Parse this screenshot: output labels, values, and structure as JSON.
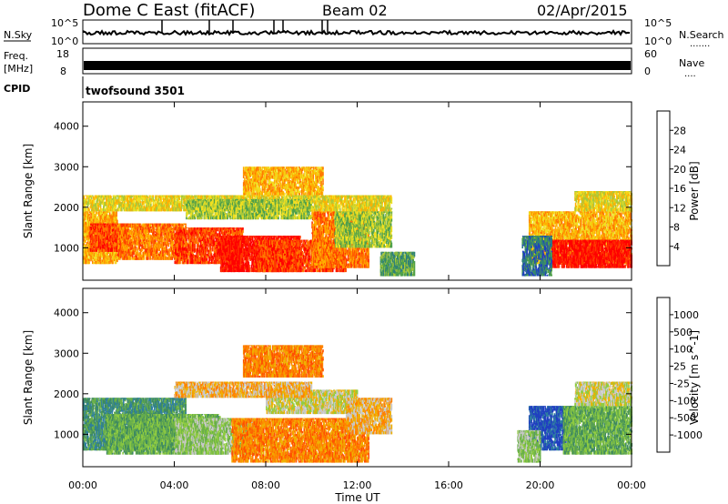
{
  "header": {
    "station": "Dome C East (fitACF)",
    "beam": "Beam 02",
    "date": "02/Apr/2015"
  },
  "strips": {
    "nsky_label": "N.Sky",
    "nsky_ticks": [
      "10^5",
      "10^0"
    ],
    "nsearch_label": "N.Search",
    "nsearch_ticks": [
      "10^5",
      "10^0"
    ],
    "freq_label_1": "Freq.",
    "freq_label_2": "[MHz]",
    "freq_ticks": [
      "18",
      "8"
    ],
    "nave_label": "Nave",
    "nave_ticks": [
      "60",
      "0"
    ],
    "cpid_label": "CPID",
    "cpid_value": "twofsound 3501"
  },
  "chart_data": [
    {
      "type": "heatmap",
      "name": "power",
      "ylabel": "Slant Range [km]",
      "ylim": [
        200,
        4600
      ],
      "yticks": [
        "4000",
        "3000",
        "2000",
        "1000"
      ],
      "xlim": [
        0,
        24
      ],
      "colorbar": {
        "label": "Power [dB]",
        "ticks": [
          "28",
          "24",
          "20",
          "16",
          "12",
          "8",
          "4"
        ],
        "colors": [
          "#0000ff",
          "#1f3fc0",
          "#2e7f7a",
          "#4fa04a",
          "#a8c83a",
          "#f0e020",
          "#ffb000",
          "#ff7a00",
          "#ff3a00",
          "#ff0000"
        ]
      },
      "regions": [
        {
          "t": [
            0.0,
            1.5
          ],
          "r": [
            600,
            1900
          ],
          "c": 6
        },
        {
          "t": [
            0.3,
            2.0
          ],
          "r": [
            900,
            1600
          ],
          "c": 8
        },
        {
          "t": [
            1.5,
            4.5
          ],
          "r": [
            700,
            1600
          ],
          "c": 7
        },
        {
          "t": [
            4.0,
            7.0
          ],
          "r": [
            600,
            1500
          ],
          "c": 8
        },
        {
          "t": [
            6.0,
            9.5
          ],
          "r": [
            400,
            1300
          ],
          "c": 9
        },
        {
          "t": [
            7.5,
            11.5
          ],
          "r": [
            400,
            1200
          ],
          "c": 8
        },
        {
          "t": [
            10.0,
            12.5
          ],
          "r": [
            500,
            1900
          ],
          "c": 7
        },
        {
          "t": [
            11.0,
            13.5
          ],
          "r": [
            1000,
            1900
          ],
          "c": 4
        },
        {
          "t": [
            0.0,
            13.5
          ],
          "r": [
            1900,
            2300
          ],
          "c": 5
        },
        {
          "t": [
            7.0,
            10.5
          ],
          "r": [
            2300,
            3000
          ],
          "c": 6
        },
        {
          "t": [
            4.5,
            10.0
          ],
          "r": [
            1700,
            2200
          ],
          "c": 4
        },
        {
          "t": [
            13.0,
            14.5
          ],
          "r": [
            300,
            900
          ],
          "c": 3
        },
        {
          "t": [
            19.5,
            24.0
          ],
          "r": [
            600,
            1900
          ],
          "c": 6
        },
        {
          "t": [
            20.5,
            24.0
          ],
          "r": [
            500,
            1200
          ],
          "c": 9
        },
        {
          "t": [
            21.5,
            24.0
          ],
          "r": [
            1900,
            2400
          ],
          "c": 5
        },
        {
          "t": [
            19.2,
            20.5
          ],
          "r": [
            300,
            1300
          ],
          "c": 2
        }
      ]
    },
    {
      "type": "heatmap",
      "name": "velocity",
      "ylabel": "Slant Range [km]",
      "xlabel": "Time UT",
      "ylim": [
        200,
        4600
      ],
      "yticks": [
        "4000",
        "3000",
        "2000",
        "1000"
      ],
      "xlim": [
        0,
        24
      ],
      "xticks": [
        "00:00",
        "04:00",
        "08:00",
        "12:00",
        "16:00",
        "20:00",
        "00:00"
      ],
      "colorbar": {
        "label": "Velocity [m s^-1]",
        "ticks": [
          "1000",
          "500",
          "100",
          "25",
          "-25",
          "-100",
          "-500",
          "-1000"
        ],
        "colors": [
          "#2040c0",
          "#2e7fa0",
          "#3f8a60",
          "#6ab04a",
          "#90cc40",
          "#c8c8c8",
          "#f0b000",
          "#ff8000",
          "#ff5000",
          "#ff0000"
        ]
      },
      "regions": [
        {
          "t": [
            0.0,
            4.5
          ],
          "r": [
            600,
            1900
          ],
          "c": 2
        },
        {
          "t": [
            1.0,
            6.0
          ],
          "r": [
            500,
            1500
          ],
          "c": 3
        },
        {
          "t": [
            4.0,
            7.5
          ],
          "r": [
            500,
            1400
          ],
          "c": 4
        },
        {
          "t": [
            6.5,
            12.5
          ],
          "r": [
            300,
            1400
          ],
          "c": 7
        },
        {
          "t": [
            8.0,
            12.0
          ],
          "r": [
            1500,
            2100
          ],
          "c": 5
        },
        {
          "t": [
            4.0,
            10.0
          ],
          "r": [
            1900,
            2300
          ],
          "c": 6
        },
        {
          "t": [
            7.0,
            10.5
          ],
          "r": [
            2400,
            3200
          ],
          "c": 7
        },
        {
          "t": [
            11.5,
            13.5
          ],
          "r": [
            1000,
            1900
          ],
          "c": 6
        },
        {
          "t": [
            19.5,
            21.5
          ],
          "r": [
            600,
            1700
          ],
          "c": 0
        },
        {
          "t": [
            21.0,
            24.0
          ],
          "r": [
            500,
            1700
          ],
          "c": 3
        },
        {
          "t": [
            21.5,
            24.0
          ],
          "r": [
            1700,
            2300
          ],
          "c": 5
        },
        {
          "t": [
            19.0,
            20.0
          ],
          "r": [
            300,
            1100
          ],
          "c": 4
        }
      ]
    }
  ]
}
